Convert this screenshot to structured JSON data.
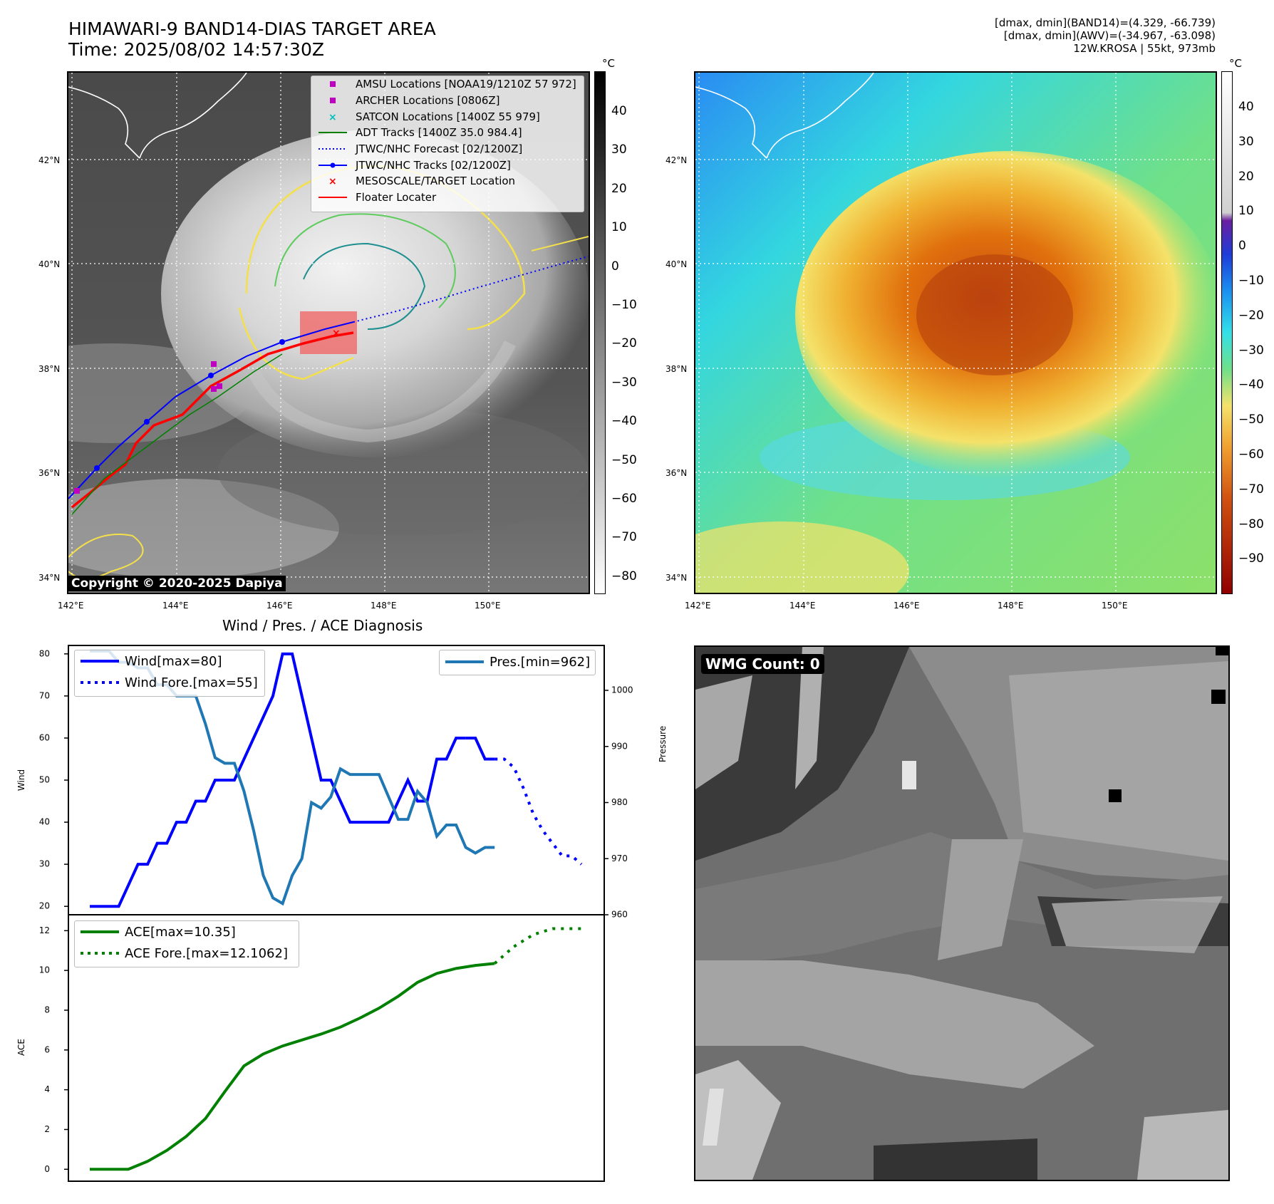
{
  "header": {
    "title_line1": "HIMAWARI-9 BAND14-DIAS TARGET AREA",
    "title_line2": "Time: 2025/08/02 14:57:30Z",
    "info_line1": "[dmax, dmin](BAND14)=(4.329, -66.739)",
    "info_line2": "[dmax, dmin](AWV)=(-34.967, -63.098)",
    "info_line3": "12W.KROSA | 55kt, 973mb"
  },
  "map": {
    "lat_labels": [
      "42°N",
      "40°N",
      "38°N",
      "36°N",
      "34°N"
    ],
    "lon_labels": [
      "142°E",
      "144°E",
      "146°E",
      "148°E",
      "150°E"
    ],
    "copyright": "Copyright © 2020-2025 Dapiya",
    "legend": [
      {
        "label": "AMSU Locations [NOAA19/1210Z 57 972]",
        "marker": "square",
        "color": "#c000c0"
      },
      {
        "label": "ARCHER Locations [0806Z]",
        "marker": "square",
        "color": "#c000c0"
      },
      {
        "label": "SATCON Locations [1400Z 55 979]",
        "marker": "x",
        "color": "#00bfbf"
      },
      {
        "label": "ADT Tracks [1400Z 35.0 984.4]",
        "marker": "line",
        "color": "#008000"
      },
      {
        "label": "JTWC/NHC Forecast [02/1200Z]",
        "marker": "dotted",
        "color": "#0000ff"
      },
      {
        "label": "JTWC/NHC Tracks [02/1200Z]",
        "marker": "line-dot",
        "color": "#0000ff"
      },
      {
        "label": "MESOSCALE/TARGET Location",
        "marker": "x",
        "color": "#ff0000"
      },
      {
        "label": "Floater Locater",
        "marker": "line",
        "color": "#ff0000"
      }
    ]
  },
  "colorbar_gray": {
    "unit": "°C",
    "ticks": [
      "40",
      "30",
      "20",
      "10",
      "0",
      "−10",
      "−20",
      "−30",
      "−40",
      "−50",
      "−60",
      "−70",
      "−80"
    ]
  },
  "colorbar_color": {
    "unit": "°C",
    "ticks": [
      "40",
      "30",
      "20",
      "10",
      "0",
      "−10",
      "−20",
      "−30",
      "−40",
      "−50",
      "−60",
      "−70",
      "−80",
      "−90"
    ]
  },
  "chart_data": [
    {
      "type": "line",
      "title": "Wind / Pres. / ACE Diagnosis",
      "ylabel": "Wind",
      "ylim": [
        18,
        82
      ],
      "yticks": [
        20,
        30,
        40,
        50,
        60,
        70,
        80
      ],
      "y2label": "Pressure",
      "y2lim": [
        960,
        1008
      ],
      "y2ticks": [
        960,
        970,
        980,
        990,
        1000
      ],
      "series": [
        {
          "name": "Wind[max=80]",
          "axis": "left",
          "style": "solid",
          "color": "#0000ff",
          "x": [
            0,
            1,
            2,
            3,
            4,
            5,
            6,
            7,
            8,
            9,
            10,
            11,
            12,
            13,
            14,
            15,
            16,
            17,
            18,
            19,
            20,
            21,
            22,
            23,
            24,
            25,
            26,
            27,
            28,
            29,
            30,
            31,
            32,
            33,
            34,
            35,
            36,
            37,
            38,
            39
          ],
          "values": [
            20,
            20,
            20,
            20,
            25,
            30,
            30,
            35,
            35,
            40,
            40,
            45,
            45,
            50,
            50,
            50,
            55,
            60,
            65,
            70,
            80,
            80,
            70,
            60,
            50,
            50,
            45,
            40,
            40,
            40,
            40,
            40,
            45,
            50,
            45,
            45,
            55,
            55,
            60,
            60
          ]
        },
        {
          "name": "",
          "axis": "left",
          "style": "solid",
          "color": "#0000ff",
          "x": [
            39,
            40,
            41,
            42
          ],
          "values": [
            60,
            60,
            55,
            55
          ]
        },
        {
          "name": "Wind Fore.[max=55]",
          "axis": "left",
          "style": "dotted",
          "color": "#0000ff",
          "x": [
            42,
            43,
            44,
            45,
            46,
            47,
            48,
            49,
            50,
            51
          ],
          "values": [
            55,
            55,
            53,
            48,
            42,
            38,
            35,
            32,
            32,
            30
          ]
        },
        {
          "name": "Pres.[min=962]",
          "axis": "right",
          "style": "solid",
          "color": "#1f77b4",
          "x": [
            0,
            1,
            2,
            3,
            4,
            5,
            6,
            7,
            8,
            9,
            10,
            11,
            12,
            13,
            14,
            15,
            16,
            17,
            18,
            19,
            20,
            21,
            22,
            23,
            24,
            25,
            26,
            27,
            28,
            29,
            30,
            31,
            32,
            33,
            34,
            35,
            36,
            37,
            38,
            39,
            40,
            41,
            42
          ],
          "values": [
            1007,
            1007,
            1007,
            1005,
            1005,
            1004,
            1004,
            1001,
            1001,
            999,
            999,
            999,
            994,
            988,
            987,
            987,
            982,
            975,
            967,
            963,
            962,
            967,
            970,
            980,
            979,
            981,
            986,
            985,
            985,
            985,
            985,
            981,
            977,
            977,
            982,
            980,
            974,
            976,
            976,
            972,
            971,
            972,
            972
          ]
        }
      ]
    },
    {
      "type": "line",
      "ylabel": "ACE",
      "ylim": [
        -0.6,
        12.8
      ],
      "yticks": [
        0,
        2,
        4,
        6,
        8,
        10,
        12
      ],
      "series": [
        {
          "name": "ACE[max=10.35]",
          "style": "solid",
          "color": "#008000",
          "x": [
            0,
            2,
            4,
            6,
            8,
            10,
            12,
            14,
            16,
            18,
            20,
            22,
            24,
            26,
            28,
            30,
            32,
            34,
            36,
            38,
            40,
            42
          ],
          "values": [
            0,
            0,
            0,
            0.4,
            0.95,
            1.65,
            2.55,
            3.9,
            5.2,
            5.8,
            6.2,
            6.5,
            6.8,
            7.15,
            7.6,
            8.1,
            8.7,
            9.4,
            9.85,
            10.1,
            10.25,
            10.35
          ]
        },
        {
          "name": "ACE Fore.[max=12.1062]",
          "style": "dotted",
          "color": "#008000",
          "x": [
            42,
            44,
            46,
            48,
            50,
            51
          ],
          "values": [
            10.35,
            11.2,
            11.8,
            12.1,
            12.1,
            12.1
          ]
        }
      ]
    }
  ],
  "wmg": {
    "label": "WMG Count: 0"
  }
}
